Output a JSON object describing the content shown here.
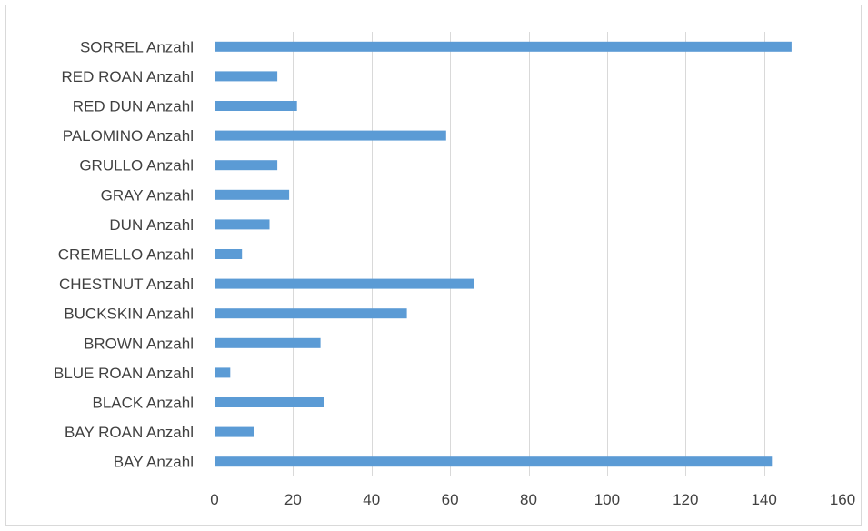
{
  "chart_data": {
    "type": "bar",
    "orientation": "horizontal",
    "title": "",
    "xlabel": "",
    "ylabel": "",
    "categories": [
      "BAY Anzahl",
      "BAY ROAN Anzahl",
      "BLACK Anzahl",
      "BLUE ROAN Anzahl",
      "BROWN Anzahl",
      "BUCKSKIN Anzahl",
      "CHESTNUT Anzahl",
      "CREMELLO Anzahl",
      "DUN Anzahl",
      "GRAY Anzahl",
      "GRULLO Anzahl",
      "PALOMINO Anzahl",
      "RED DUN Anzahl",
      "RED ROAN Anzahl",
      "SORREL Anzahl"
    ],
    "values": [
      142,
      10,
      28,
      4,
      27,
      49,
      66,
      7,
      14,
      19,
      16,
      59,
      21,
      16,
      147
    ],
    "xlim": [
      0,
      160
    ],
    "xticks": [
      0,
      20,
      40,
      60,
      80,
      100,
      120,
      140,
      160
    ],
    "grid": true,
    "legend": "none",
    "bar_color": "#5b9bd5"
  }
}
